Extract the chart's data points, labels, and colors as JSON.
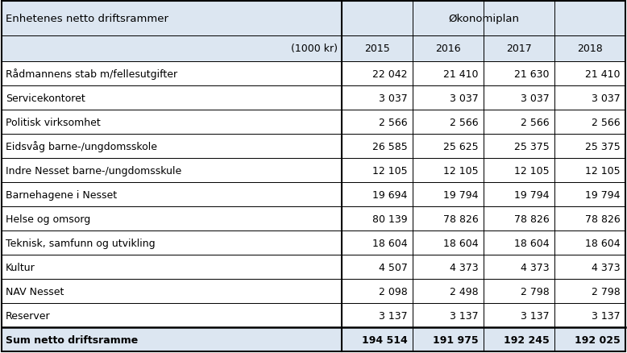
{
  "title_left": "Enhetenes netto driftsrammer",
  "title_right": "Økonomiplan",
  "subtitle_left": "(1000 kr)",
  "years": [
    "2015",
    "2016",
    "2017",
    "2018"
  ],
  "rows": [
    {
      "label": "Rådmannens stab m/fellesutgifter",
      "values": [
        "22 042",
        "21 410",
        "21 630",
        "21 410"
      ],
      "bold": false
    },
    {
      "label": "Servicekontoret",
      "values": [
        "3 037",
        "3 037",
        "3 037",
        "3 037"
      ],
      "bold": false
    },
    {
      "label": "Politisk virksomhet",
      "values": [
        "2 566",
        "2 566",
        "2 566",
        "2 566"
      ],
      "bold": false
    },
    {
      "label": "Eidsvåg barne-/ungdomsskole",
      "values": [
        "26 585",
        "25 625",
        "25 375",
        "25 375"
      ],
      "bold": false
    },
    {
      "label": "Indre Nesset barne-/ungdomsskule",
      "values": [
        "12 105",
        "12 105",
        "12 105",
        "12 105"
      ],
      "bold": false
    },
    {
      "label": "Barnehagene i Nesset",
      "values": [
        "19 694",
        "19 794",
        "19 794",
        "19 794"
      ],
      "bold": false
    },
    {
      "label": "Helse og omsorg",
      "values": [
        "80 139",
        "78 826",
        "78 826",
        "78 826"
      ],
      "bold": false
    },
    {
      "label": "Teknisk, samfunn og utvikling",
      "values": [
        "18 604",
        "18 604",
        "18 604",
        "18 604"
      ],
      "bold": false
    },
    {
      "label": "Kultur",
      "values": [
        "4 507",
        "4 373",
        "4 373",
        "4 373"
      ],
      "bold": false
    },
    {
      "label": "NAV Nesset",
      "values": [
        "2 098",
        "2 498",
        "2 798",
        "2 798"
      ],
      "bold": false
    },
    {
      "label": "Reserver",
      "values": [
        "3 137",
        "3 137",
        "3 137",
        "3 137"
      ],
      "bold": false
    },
    {
      "label": "Sum netto driftsramme",
      "values": [
        "194 514",
        "191 975",
        "192 245",
        "192 025"
      ],
      "bold": true
    }
  ],
  "header_bg": "#dce6f1",
  "sum_bg": "#dce6f1",
  "body_bg": "#ffffff",
  "font_size": 9.0,
  "header_font_size": 9.5,
  "fig_w": 7.78,
  "fig_h": 4.39,
  "dpi": 100
}
